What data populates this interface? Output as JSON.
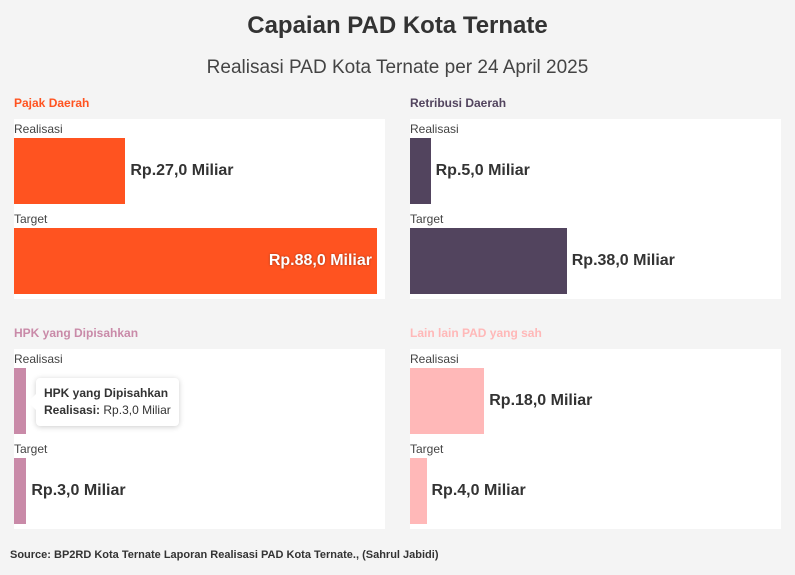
{
  "chart_data": {
    "type": "bar",
    "title": "Capaian PAD Kota Ternate",
    "subtitle": "Realisasi PAD Kota Ternate per 24 April 2025",
    "unit": "Miliar Rupiah",
    "scale_max": 88,
    "panels": [
      {
        "title": "Pajak Daerah",
        "color": "#ff5320",
        "bars": [
          {
            "label": "Realisasi",
            "value": 27,
            "text": "Rp.27,0 Miliar"
          },
          {
            "label": "Target",
            "value": 88,
            "text": "Rp.88,0 Miliar"
          }
        ]
      },
      {
        "title": "Retribusi Daerah",
        "color": "#52445e",
        "bars": [
          {
            "label": "Realisasi",
            "value": 5,
            "text": "Rp.5,0 Miliar"
          },
          {
            "label": "Target",
            "value": 38,
            "text": "Rp.38,0 Miliar"
          }
        ]
      },
      {
        "title": "HPK yang Dipisahkan",
        "color": "#c98aa8",
        "bars": [
          {
            "label": "Realisasi",
            "value": 3,
            "text": ""
          },
          {
            "label": "Target",
            "value": 3,
            "text": "Rp.3,0 Miliar"
          }
        ]
      },
      {
        "title": "Lain lain PAD yang sah",
        "color": "#ffb8b8",
        "bars": [
          {
            "label": "Realisasi",
            "value": 18,
            "text": "Rp.18,0 Miliar"
          },
          {
            "label": "Target",
            "value": 4,
            "text": "Rp.4,0 Miliar"
          }
        ]
      }
    ]
  },
  "tooltip": {
    "title": "HPK yang Dipisahkan",
    "key": "Realisasi:",
    "value": "Rp.3,0 Miliar"
  },
  "source": "Source: BP2RD Kota Ternate Laporan Realisasi PAD Kota Ternate., (Sahrul Jabidi)"
}
